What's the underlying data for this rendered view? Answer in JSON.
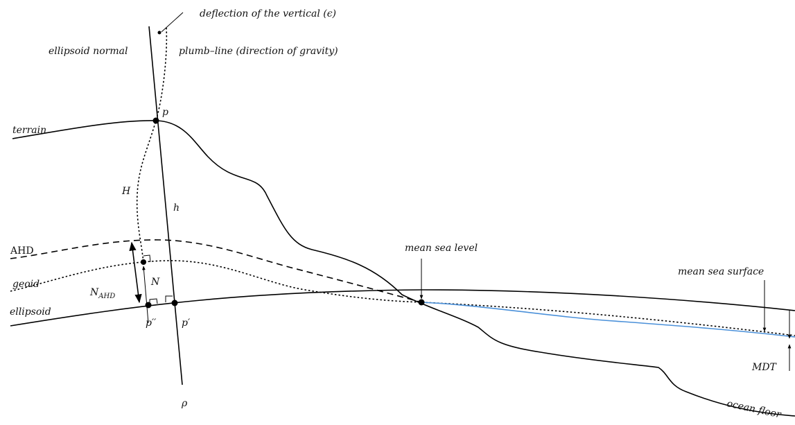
{
  "labels": {
    "deflection": "deflection of the vertical (ϵ)",
    "ellipsoid_normal": "ellipsoid normal",
    "plumb_line": "plumb–line (direction of gravity)",
    "terrain": "terrain",
    "p": "p",
    "H": "H",
    "h": "h",
    "AHD": "AHD",
    "geoid": "geoid",
    "ellipsoid": "ellipsoid",
    "N_AHD_main": "N",
    "N_AHD_sub": "AHD",
    "N": "N",
    "p_double_prime": "p′′",
    "p_prime": "p′",
    "rho": "ρ",
    "mean_sea_level": "mean sea level",
    "mean_sea_surface": "mean sea surface",
    "MDT": "MDT",
    "ocean_floor": "ocean floor"
  },
  "colors": {
    "lines": "#000000",
    "sea_surface": "#4a90d9"
  }
}
